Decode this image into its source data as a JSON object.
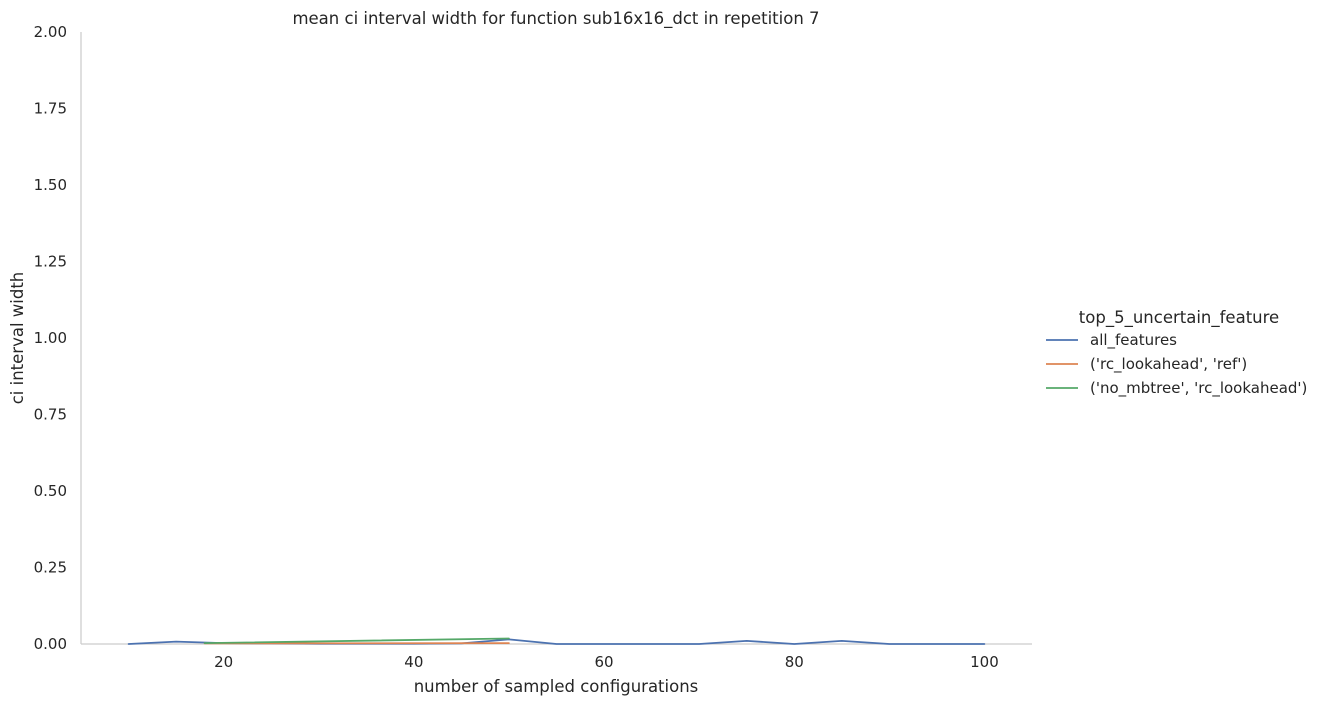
{
  "chart_data": {
    "type": "line",
    "title": "mean ci interval width for function sub16x16_dct in repetition 7",
    "xlabel": "number of sampled configurations",
    "ylabel": "ci interval width",
    "xlim": [
      5,
      105
    ],
    "ylim": [
      0,
      2
    ],
    "x_ticks": [
      20,
      40,
      60,
      80,
      100
    ],
    "y_ticks": [
      0.0,
      0.25,
      0.5,
      0.75,
      1.0,
      1.25,
      1.5,
      1.75,
      2.0
    ],
    "x_tick_labels": [
      "20",
      "40",
      "60",
      "80",
      "100"
    ],
    "y_tick_labels": [
      "0.00",
      "0.25",
      "0.50",
      "0.75",
      "1.00",
      "1.25",
      "1.50",
      "1.75",
      "2.00"
    ],
    "grid": false,
    "legend": {
      "title": "top_5_uncertain_feature",
      "placement": "center-right"
    },
    "series": [
      {
        "name": "all_features",
        "color": "#4c72b0",
        "x": [
          10,
          15,
          20,
          25,
          30,
          35,
          40,
          45,
          50,
          55,
          60,
          65,
          70,
          75,
          80,
          85,
          90,
          95,
          100
        ],
        "y": [
          0.0,
          0.008,
          0.003,
          0.002,
          0.001,
          0.001,
          0.001,
          0.002,
          0.015,
          0.0,
          0.0,
          0.0,
          0.0,
          0.01,
          0.0,
          0.01,
          0.0,
          0.0,
          0.0
        ]
      },
      {
        "name": "('rc_lookahead', 'ref')",
        "color": "#dd8452",
        "x": [
          18,
          50
        ],
        "y": [
          0.002,
          0.003
        ]
      },
      {
        "name": "('no_mbtree', 'rc_lookahead')",
        "color": "#55a868",
        "x": [
          18,
          50
        ],
        "y": [
          0.003,
          0.018
        ]
      }
    ]
  }
}
